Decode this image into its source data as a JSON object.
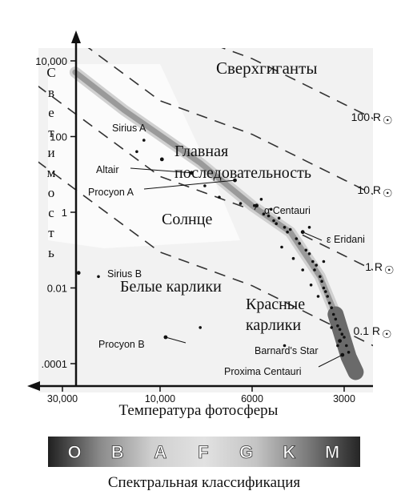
{
  "chart_data": {
    "type": "scatter",
    "title": "",
    "ylabel": "Светимость",
    "xlabel": "Температура фотосферы",
    "y_scale": "log",
    "x_scale": "log-reversed",
    "xlim": [
      35000,
      2400
    ],
    "ylim": [
      4e-05,
      40000
    ],
    "y_ticks": [
      {
        "value": 10000,
        "label": "10,000"
      },
      {
        "value": 100,
        "label": "100"
      },
      {
        "value": 1,
        "label": "1"
      },
      {
        "value": 0.01,
        "label": "0.01"
      },
      {
        "value": 0.0001,
        "label": ".0001"
      }
    ],
    "x_ticks": [
      {
        "value": 30000,
        "label": "30,000"
      },
      {
        "value": 10000,
        "label": "10,000"
      },
      {
        "value": 6000,
        "label": "6000"
      },
      {
        "value": 3000,
        "label": "3000"
      }
    ],
    "radius_lines": [
      {
        "label": "100 R",
        "symbol": "☉",
        "radius": 100
      },
      {
        "label": "10 R",
        "symbol": "☉",
        "radius": 10
      },
      {
        "label": "1 R",
        "symbol": "☉",
        "radius": 1
      },
      {
        "label": "0.1 R",
        "symbol": "☉",
        "radius": 0.1
      }
    ],
    "region_labels": {
      "supergiants": "Сверхгиганты",
      "main_sequence_1": "Главная",
      "main_sequence_2": "последовательность",
      "sun": "Солнце",
      "white_dwarfs": "Белые карлики",
      "red_dwarfs_1": "Красные",
      "red_dwarfs_2": "карлики"
    },
    "main_sequence_band": [
      {
        "temp": 26000,
        "lum": 5000
      },
      {
        "temp": 15000,
        "lum": 500
      },
      {
        "temp": 8000,
        "lum": 20
      },
      {
        "temp": 6000,
        "lum": 1.5
      },
      {
        "temp": 4500,
        "lum": 0.3
      },
      {
        "temp": 3600,
        "lum": 0.02
      },
      {
        "temp": 3200,
        "lum": 0.002
      },
      {
        "temp": 2900,
        "lum": 0.00015
      },
      {
        "temp": 2750,
        "lum": 6e-05
      }
    ],
    "named_stars": [
      {
        "name": "Sirius A",
        "temp": 9900,
        "lum": 25
      },
      {
        "name": "Altair",
        "temp": 8400,
        "lum": 11
      },
      {
        "name": "Procyon A",
        "temp": 6600,
        "lum": 7
      },
      {
        "name": "α Centauri",
        "temp": 5800,
        "lum": 1.5
      },
      {
        "name": "ε Eridani",
        "temp": 4100,
        "lum": 0.3
      },
      {
        "name": "Sirius B",
        "temp": 25000,
        "lum": 0.025
      },
      {
        "name": "Procyon B",
        "temp": 9700,
        "lum": 0.0005
      },
      {
        "name": "Barnard's Star",
        "temp": 3100,
        "lum": 0.0004
      },
      {
        "name": "Proxima Centauri",
        "temp": 3040,
        "lum": 0.00017
      }
    ],
    "points": [
      {
        "temp": 13000,
        "lum": 40
      },
      {
        "temp": 12000,
        "lum": 80
      },
      {
        "temp": 7800,
        "lum": 5
      },
      {
        "temp": 7200,
        "lum": 2.5
      },
      {
        "temp": 6400,
        "lum": 1.7
      },
      {
        "temp": 5900,
        "lum": 1.5
      },
      {
        "temp": 5500,
        "lum": 0.9
      },
      {
        "temp": 5300,
        "lum": 0.8
      },
      {
        "temp": 5100,
        "lum": 0.6
      },
      {
        "temp": 5000,
        "lum": 0.5
      },
      {
        "temp": 4900,
        "lum": 0.7
      },
      {
        "temp": 4700,
        "lum": 0.4
      },
      {
        "temp": 4600,
        "lum": 0.3
      },
      {
        "temp": 4500,
        "lum": 0.35
      },
      {
        "temp": 4300,
        "lum": 0.2
      },
      {
        "temp": 4200,
        "lum": 0.15
      },
      {
        "temp": 4000,
        "lum": 0.1
      },
      {
        "temp": 3900,
        "lum": 0.08
      },
      {
        "temp": 3800,
        "lum": 0.05
      },
      {
        "temp": 3750,
        "lum": 0.03
      },
      {
        "temp": 3700,
        "lum": 0.04
      },
      {
        "temp": 3600,
        "lum": 0.02
      },
      {
        "temp": 3550,
        "lum": 0.015
      },
      {
        "temp": 3500,
        "lum": 0.01
      },
      {
        "temp": 3450,
        "lum": 0.008
      },
      {
        "temp": 3400,
        "lum": 0.006
      },
      {
        "temp": 3350,
        "lum": 0.004
      },
      {
        "temp": 3300,
        "lum": 0.003
      },
      {
        "temp": 3250,
        "lum": 0.002
      },
      {
        "temp": 3200,
        "lum": 0.0015
      },
      {
        "temp": 3150,
        "lum": 0.001
      },
      {
        "temp": 3100,
        "lum": 0.0008
      },
      {
        "temp": 3050,
        "lum": 0.0006
      },
      {
        "temp": 3000,
        "lum": 0.0005
      },
      {
        "temp": 2950,
        "lum": 0.0003
      },
      {
        "temp": 2900,
        "lum": 0.0002
      },
      {
        "temp": 4800,
        "lum": 0.12
      },
      {
        "temp": 4400,
        "lum": 0.06
      },
      {
        "temp": 4100,
        "lum": 0.03
      },
      {
        "temp": 3650,
        "lum": 0.006
      },
      {
        "temp": 3300,
        "lum": 0.0009
      },
      {
        "temp": 3150,
        "lum": 0.0003
      },
      {
        "temp": 5600,
        "lum": 2.2
      },
      {
        "temp": 5200,
        "lum": 1.2
      },
      {
        "temp": 3900,
        "lum": 0.4
      },
      {
        "temp": 3500,
        "lum": 0.05
      },
      {
        "temp": 3850,
        "lum": 0.012
      },
      {
        "temp": 20000,
        "lum": 0.02
      },
      {
        "temp": 8000,
        "lum": 0.0009
      },
      {
        "temp": 4700,
        "lum": 0.0003
      }
    ]
  },
  "spectral": {
    "classes": [
      "O",
      "B",
      "A",
      "F",
      "G",
      "K",
      "M"
    ],
    "caption": "Спектральная классификация",
    "gradient": [
      "#202020",
      "#8a8a8a",
      "#cfcfcf",
      "#e2e2e2",
      "#c4c4c4",
      "#7a7a7a",
      "#252525"
    ]
  },
  "colors": {
    "axis": "#111111",
    "dashed": "#333333",
    "band": "#9a9a9a",
    "background_panel": "#eeeeee"
  }
}
